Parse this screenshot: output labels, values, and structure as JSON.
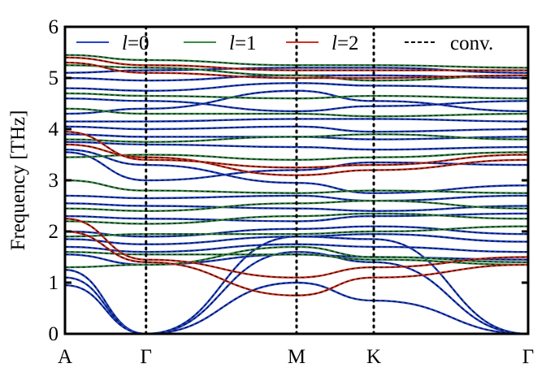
{
  "chart_data": {
    "type": "line",
    "title": "",
    "ylabel": "Frequency [THz]",
    "xlabel": "",
    "ylim": [
      0,
      6
    ],
    "yticks": [
      "0",
      "1",
      "2",
      "3",
      "4",
      "5",
      "6"
    ],
    "xpath": [
      {
        "label": "A",
        "x": 0.0
      },
      {
        "label": "Γ",
        "x": 0.175
      },
      {
        "label": "M",
        "x": 0.5
      },
      {
        "label": "K",
        "x": 0.6667
      },
      {
        "label": "Γ",
        "x": 1.0
      }
    ],
    "high_symmetry_lines": [
      0.175,
      0.5,
      0.6667
    ],
    "grid": false,
    "legend": {
      "placement": "top",
      "entries": [
        {
          "name_prefix": "l",
          "name_suffix": "=0",
          "color": "#2244cc",
          "style": "solid"
        },
        {
          "name_prefix": "l",
          "name_suffix": "=1",
          "color": "#3a8a4a",
          "style": "solid"
        },
        {
          "name_prefix": "l",
          "name_suffix": "=2",
          "color": "#cc3322",
          "style": "solid"
        },
        {
          "name_prefix": "",
          "name_suffix": "conv.",
          "color": "#000000",
          "style": "dashed"
        }
      ]
    },
    "series": [
      {
        "name": "l=0",
        "color": "#2244cc",
        "bands": [
          {
            "y": [
              1.25,
              0.0,
              1.0,
              0.65,
              0.0
            ]
          },
          {
            "y": [
              1.1,
              0.0,
              1.6,
              1.4,
              0.0
            ]
          },
          {
            "y": [
              0.95,
              0.0,
              1.9,
              1.85,
              0.0
            ]
          },
          {
            "y": [
              1.55,
              1.35,
              1.55,
              1.5,
              1.45
            ]
          },
          {
            "y": [
              1.7,
              1.6,
              1.75,
              1.7,
              1.6
            ]
          },
          {
            "y": [
              1.85,
              1.75,
              1.9,
              1.95,
              1.8
            ]
          },
          {
            "y": [
              2.0,
              1.9,
              2.05,
              2.1,
              1.95
            ]
          },
          {
            "y": [
              2.3,
              2.25,
              2.2,
              2.3,
              2.35
            ]
          },
          {
            "y": [
              2.55,
              2.5,
              2.45,
              2.4,
              2.5
            ]
          },
          {
            "y": [
              2.7,
              2.65,
              2.7,
              2.6,
              2.7
            ]
          },
          {
            "y": [
              3.55,
              3.0,
              3.2,
              3.35,
              3.3
            ]
          },
          {
            "y": [
              3.6,
              3.3,
              2.95,
              2.75,
              2.9
            ]
          },
          {
            "y": [
              3.75,
              3.7,
              3.65,
              3.6,
              3.65
            ]
          },
          {
            "y": [
              3.9,
              3.85,
              3.85,
              3.8,
              3.85
            ]
          },
          {
            "y": [
              4.05,
              4.0,
              4.05,
              3.95,
              4.0
            ]
          },
          {
            "y": [
              4.15,
              4.15,
              4.2,
              4.2,
              4.15
            ]
          },
          {
            "y": [
              4.3,
              4.4,
              4.75,
              4.55,
              4.35
            ]
          },
          {
            "y": [
              4.6,
              4.55,
              4.35,
              4.45,
              4.55
            ]
          },
          {
            "y": [
              4.8,
              4.75,
              4.9,
              4.85,
              4.8
            ]
          },
          {
            "y": [
              5.0,
              4.95,
              5.05,
              5.05,
              5.0
            ]
          },
          {
            "y": [
              5.1,
              5.15,
              5.2,
              5.2,
              5.1
            ]
          }
        ]
      },
      {
        "name": "l=1",
        "color": "#3a8a4a",
        "bands": [
          {
            "y": [
              1.3,
              1.35,
              1.7,
              1.5,
              1.4
            ]
          },
          {
            "y": [
              1.6,
              1.55,
              1.55,
              1.45,
              1.35
            ]
          },
          {
            "y": [
              1.9,
              1.95,
              1.95,
              2.0,
              2.1
            ]
          },
          {
            "y": [
              2.2,
              2.15,
              2.3,
              2.35,
              2.25
            ]
          },
          {
            "y": [
              2.45,
              2.4,
              2.55,
              2.6,
              2.45
            ]
          },
          {
            "y": [
              3.0,
              2.8,
              2.75,
              2.8,
              2.75
            ]
          },
          {
            "y": [
              3.45,
              3.5,
              3.4,
              3.45,
              3.55
            ]
          },
          {
            "y": [
              3.8,
              3.75,
              3.85,
              3.9,
              3.8
            ]
          },
          {
            "y": [
              4.4,
              4.3,
              4.3,
              4.25,
              4.3
            ]
          },
          {
            "y": [
              4.7,
              4.65,
              4.6,
              4.65,
              4.6
            ]
          },
          {
            "y": [
              5.25,
              5.2,
              5.05,
              4.95,
              5.05
            ]
          },
          {
            "y": [
              5.45,
              5.35,
              5.25,
              5.25,
              5.2
            ]
          }
        ]
      },
      {
        "name": "l=2",
        "color": "#cc3322",
        "bands": [
          {
            "y": [
              2.0,
              1.4,
              0.75,
              1.1,
              1.35
            ]
          },
          {
            "y": [
              2.25,
              1.45,
              1.1,
              1.3,
              1.5
            ]
          },
          {
            "y": [
              3.7,
              3.45,
              3.1,
              3.2,
              3.4
            ]
          },
          {
            "y": [
              3.95,
              3.4,
              3.25,
              3.3,
              3.5
            ]
          },
          {
            "y": [
              5.3,
              5.1,
              5.0,
              5.0,
              5.05
            ]
          },
          {
            "y": [
              5.4,
              5.25,
              5.15,
              5.15,
              5.15
            ]
          }
        ]
      }
    ]
  }
}
